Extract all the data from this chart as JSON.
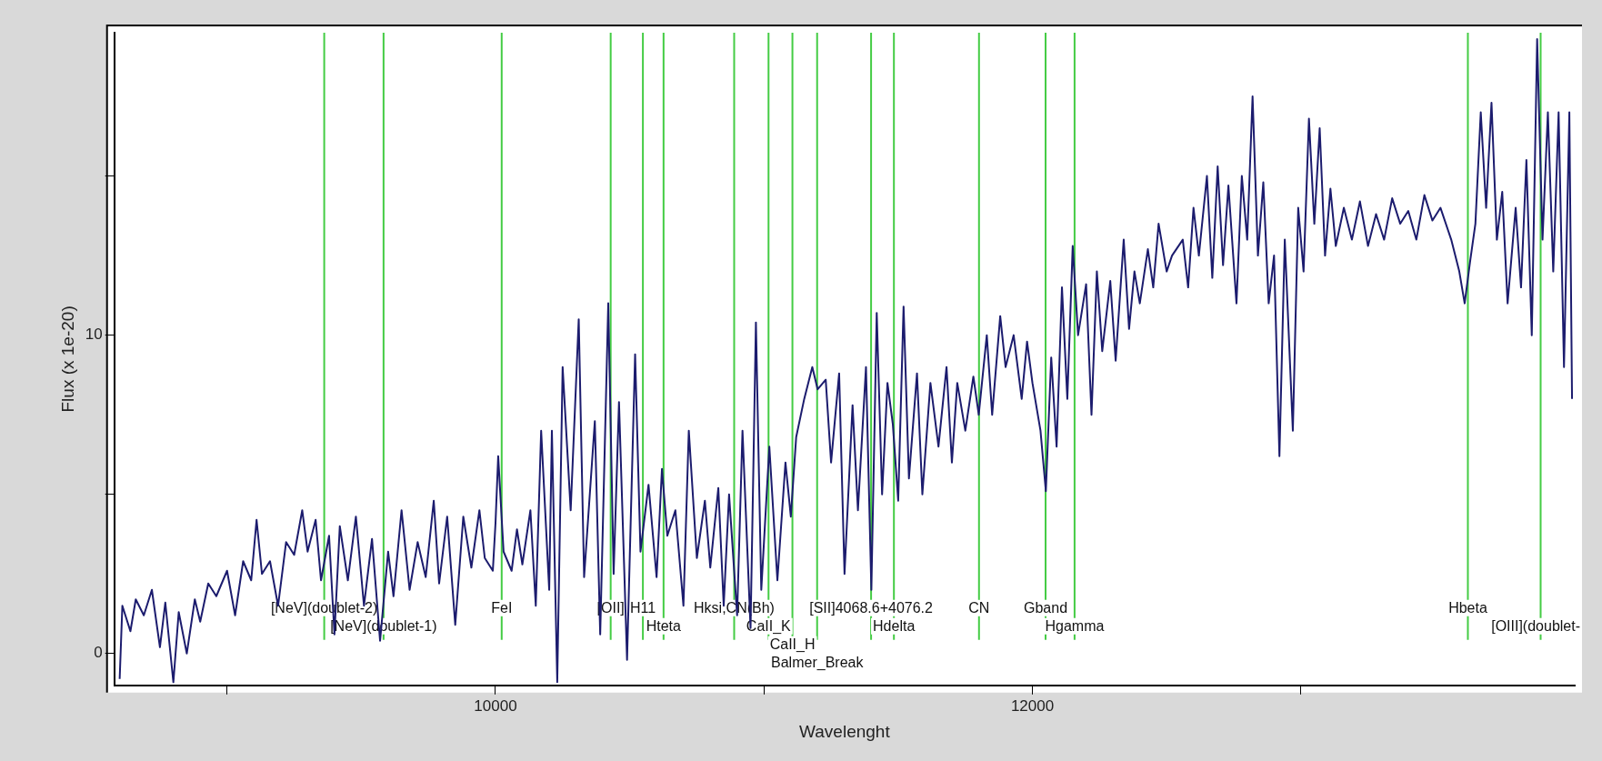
{
  "chart_data": {
    "type": "line",
    "xlabel": "Wavelenght",
    "ylabel": "Flux (x 1e-20)",
    "marker": "none",
    "legend": false,
    "xlim": [
      8580,
      14020
    ],
    "ylim": [
      -1,
      19.5
    ],
    "xticks": [
      {
        "value": 9000,
        "label": null
      },
      10000,
      {
        "value": 11000,
        "label": null
      },
      12000,
      {
        "value": 13000,
        "label": null
      }
    ],
    "yticks": [
      0,
      {
        "value": 5,
        "label": null
      },
      10,
      {
        "value": 15,
        "label": null
      }
    ],
    "series": [
      {
        "color": "#1c1c6e",
        "x": [
          8600,
          8610,
          8640,
          8660,
          8690,
          8720,
          8750,
          8770,
          8800,
          8820,
          8850,
          8880,
          8900,
          8930,
          8960,
          9000,
          9030,
          9060,
          9090,
          9110,
          9130,
          9160,
          9190,
          9220,
          9250,
          9280,
          9300,
          9330,
          9350,
          9380,
          9400,
          9420,
          9450,
          9480,
          9510,
          9540,
          9570,
          9600,
          9620,
          9650,
          9680,
          9710,
          9740,
          9770,
          9790,
          9820,
          9850,
          9880,
          9910,
          9940,
          9960,
          9990,
          10000,
          10010,
          10030,
          10060,
          10080,
          10100,
          10130,
          10150,
          10170,
          10200,
          10210,
          10230,
          10250,
          10280,
          10310,
          10330,
          10370,
          10390,
          10420,
          10440,
          10460,
          10490,
          10520,
          10540,
          10570,
          10600,
          10620,
          10640,
          10670,
          10700,
          10720,
          10750,
          10780,
          10800,
          10830,
          10850,
          10870,
          10900,
          10920,
          10950,
          10970,
          10990,
          11020,
          11050,
          11080,
          11100,
          11120,
          11150,
          11180,
          11200,
          11230,
          11250,
          11280,
          11300,
          11330,
          11350,
          11380,
          11400,
          11420,
          11440,
          11460,
          11480,
          11500,
          11520,
          11540,
          11570,
          11590,
          11620,
          11650,
          11680,
          11700,
          11720,
          11750,
          11780,
          11800,
          11830,
          11850,
          11880,
          11900,
          11930,
          11960,
          11980,
          12000,
          12030,
          12050,
          12070,
          12090,
          12110,
          12130,
          12150,
          12170,
          12200,
          12220,
          12240,
          12260,
          12290,
          12310,
          12340,
          12360,
          12380,
          12400,
          12430,
          12450,
          12470,
          12500,
          12520,
          12560,
          12580,
          12600,
          12620,
          12650,
          12670,
          12690,
          12710,
          12730,
          12760,
          12780,
          12800,
          12820,
          12840,
          12860,
          12880,
          12900,
          12920,
          12940,
          12970,
          12990,
          13010,
          13030,
          13050,
          13070,
          13090,
          13110,
          13130,
          13160,
          13190,
          13220,
          13250,
          13280,
          13310,
          13340,
          13370,
          13400,
          13430,
          13460,
          13490,
          13520,
          13560,
          13590,
          13610,
          13630,
          13650,
          13670,
          13690,
          13710,
          13730,
          13750,
          13770,
          13800,
          13820,
          13840,
          13860,
          13880,
          13900,
          13920,
          13940,
          13960,
          13980,
          14000,
          14010
        ],
        "values": [
          -0.8,
          1.5,
          0.7,
          1.7,
          1.2,
          2.0,
          0.2,
          1.6,
          -0.9,
          1.3,
          0.0,
          1.7,
          1.0,
          2.2,
          1.8,
          2.6,
          1.2,
          2.9,
          2.3,
          4.2,
          2.5,
          2.9,
          1.5,
          3.5,
          3.1,
          4.5,
          3.2,
          4.2,
          2.3,
          3.7,
          0.6,
          4.0,
          2.3,
          4.3,
          1.5,
          3.6,
          0.4,
          3.2,
          1.8,
          4.5,
          2.0,
          3.5,
          2.4,
          4.8,
          2.2,
          4.3,
          0.9,
          4.3,
          2.7,
          4.5,
          3.0,
          2.6,
          4.1,
          6.2,
          3.2,
          2.6,
          3.9,
          2.8,
          4.5,
          1.5,
          7.0,
          2.0,
          7.0,
          -0.9,
          9.0,
          4.5,
          10.5,
          2.4,
          7.3,
          0.6,
          11.0,
          2.5,
          7.9,
          -0.2,
          9.4,
          3.2,
          5.3,
          2.4,
          5.8,
          3.7,
          4.5,
          1.5,
          7.0,
          3.0,
          4.8,
          2.7,
          5.2,
          1.5,
          5.0,
          1.2,
          7.0,
          0.8,
          10.4,
          2.0,
          6.5,
          2.3,
          6.0,
          4.3,
          6.8,
          8.0,
          9.0,
          8.3,
          8.6,
          6.0,
          8.8,
          2.5,
          7.8,
          4.5,
          9.0,
          2.0,
          10.7,
          5.0,
          8.5,
          7.2,
          4.8,
          10.9,
          5.5,
          8.8,
          5.0,
          8.5,
          6.5,
          9.0,
          6.0,
          8.5,
          7.0,
          8.7,
          7.5,
          10.0,
          7.5,
          10.6,
          9.0,
          10.0,
          8.0,
          9.8,
          8.5,
          7.0,
          5.1,
          9.3,
          6.5,
          11.5,
          8.0,
          12.8,
          10.0,
          11.6,
          7.5,
          12.0,
          9.5,
          11.7,
          9.2,
          13.0,
          10.2,
          12.0,
          11.0,
          12.7,
          11.5,
          13.5,
          12.0,
          12.5,
          13.0,
          11.5,
          14.0,
          12.5,
          15.0,
          11.8,
          15.3,
          12.2,
          14.7,
          11.0,
          15.0,
          13.0,
          17.5,
          12.5,
          14.8,
          11.0,
          12.5,
          6.2,
          13.0,
          7.0,
          14.0,
          12.0,
          16.8,
          13.5,
          16.5,
          12.5,
          14.6,
          12.8,
          14.0,
          13.0,
          14.2,
          12.8,
          13.8,
          13.0,
          14.3,
          13.5,
          13.9,
          13.0,
          14.4,
          13.6,
          14.0,
          13.0,
          12.0,
          11.0,
          12.3,
          13.5,
          17.0,
          14.0,
          17.3,
          13.0,
          14.5,
          11.0,
          14.0,
          11.5,
          15.5,
          10.0,
          19.3,
          13.0,
          17.0,
          12.0,
          17.0,
          9.0,
          17.0,
          8.0
        ]
      }
    ],
    "ref_lines": [
      {
        "axis": "x",
        "value": 9362,
        "label": "[NeV](doublet-2)",
        "color": "#44cc44"
      },
      {
        "axis": "x",
        "value": 9583,
        "label": "[NeV](doublet-1)",
        "color": "#44cc44"
      },
      {
        "axis": "x",
        "value": 10023,
        "label": "FeI",
        "color": "#44cc44"
      },
      {
        "axis": "x",
        "value": 10429,
        "label": "[OII]",
        "color": "#44cc44"
      },
      {
        "axis": "x",
        "value": 10549,
        "label": "H11",
        "color": "#44cc44"
      },
      {
        "axis": "x",
        "value": 10626,
        "label": "Hteta",
        "color": "#44cc44"
      },
      {
        "axis": "x",
        "value": 10889,
        "label": "Hksi,CN(Bh)",
        "color": "#44cc44"
      },
      {
        "axis": "x",
        "value": 11017,
        "label": "CaII_K",
        "color": "#44cc44"
      },
      {
        "axis": "x",
        "value": 11106,
        "label": "CaII_H",
        "color": "#44cc44"
      },
      {
        "axis": "x",
        "value": 11198,
        "label": "Balmer_Break",
        "color": "#44cc44"
      },
      {
        "axis": "x",
        "value": 11399,
        "label": "[SII]4068.6+4076.2",
        "color": "#44cc44"
      },
      {
        "axis": "x",
        "value": 11484,
        "label": "Hdelta",
        "color": "#44cc44"
      },
      {
        "axis": "x",
        "value": 11801,
        "label": "CN",
        "color": "#44cc44"
      },
      {
        "axis": "x",
        "value": 12049,
        "label": "Gband",
        "color": "#44cc44"
      },
      {
        "axis": "x",
        "value": 12157,
        "label": "Hgamma",
        "color": "#44cc44"
      },
      {
        "axis": "x",
        "value": 13622,
        "label": "Hbeta",
        "color": "#44cc44"
      },
      {
        "axis": "x",
        "value": 13893,
        "label": "[OIII](doublet-",
        "color": "#44cc44"
      }
    ]
  }
}
